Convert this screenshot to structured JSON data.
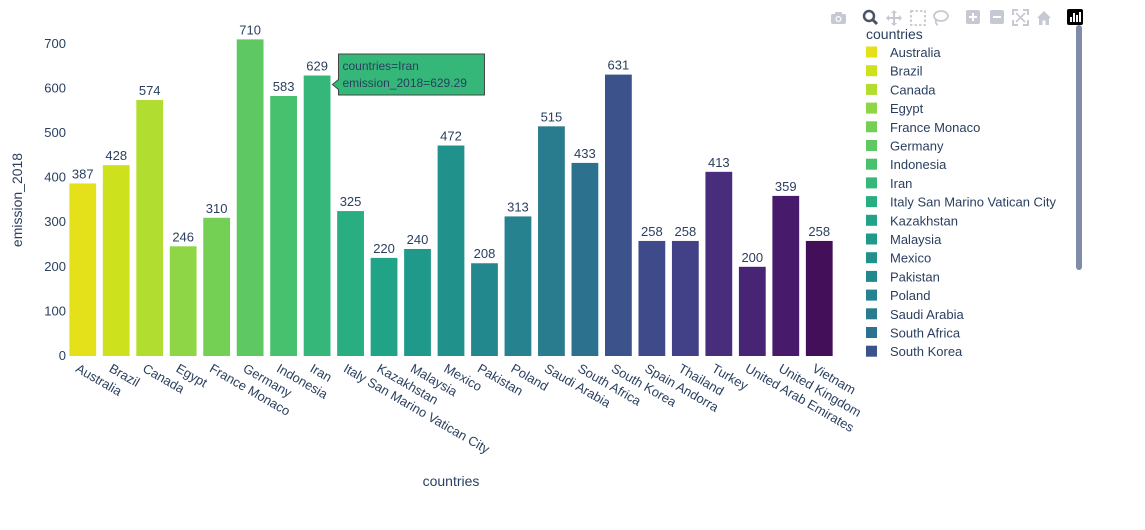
{
  "chart_data": {
    "type": "bar",
    "categories": [
      "Australia",
      "Brazil",
      "Canada",
      "Egypt",
      "France  Monaco",
      "Germany",
      "Indonesia",
      "Iran",
      "Italy  San Marino  Vatican City",
      "Kazakhstan",
      "Malaysia",
      "Mexico",
      "Pakistan",
      "Poland",
      "Saudi Arabia",
      "South Africa",
      "South Korea",
      "Spain  Andorra",
      "Thailand",
      "Turkey",
      "United Arab Emirates",
      "United Kingdom",
      "Vietnam"
    ],
    "values": [
      387,
      428,
      574,
      246,
      310,
      710,
      583,
      629,
      325,
      220,
      240,
      472,
      208,
      313,
      515,
      433,
      631,
      258,
      258,
      413,
      200,
      359,
      258
    ],
    "data_labels": [
      "387",
      "428",
      "574",
      "246",
      "310",
      "710",
      "583",
      "629",
      "325",
      "220",
      "240",
      "472",
      "208",
      "313",
      "515",
      "433",
      "631",
      "258",
      "258",
      "413",
      "200",
      "359",
      "258"
    ],
    "colors": [
      "#e4e11b",
      "#cde11d",
      "#b0dd2f",
      "#8ed645",
      "#74d055",
      "#5ec962",
      "#48c16e",
      "#35b779",
      "#28ae80",
      "#20a386",
      "#1f9a8a",
      "#21918c",
      "#23888e",
      "#26828e",
      "#297b8e",
      "#2c728e",
      "#3b528b",
      "#3e4a89",
      "#424086",
      "#472d7b",
      "#482475",
      "#481a6c",
      "#440f59"
    ],
    "xlabel": "countries",
    "ylabel": "emission_2018",
    "ylim": [
      0,
      740
    ],
    "yticks": [
      0,
      100,
      200,
      300,
      400,
      500,
      600,
      700
    ],
    "grid": false,
    "legend": {
      "title": "countries",
      "placement": "top-right",
      "entries": [
        "Australia",
        "Brazil",
        "Canada",
        "Egypt",
        "France  Monaco",
        "Germany",
        "Indonesia",
        "Iran",
        "Italy  San Marino  Vatican City",
        "Kazakhstan",
        "Malaysia",
        "Mexico",
        "Pakistan",
        "Poland",
        "Saudi Arabia",
        "South Africa",
        "South Korea"
      ]
    },
    "tooltip": {
      "category_index": 7,
      "line1": "countries=Iran",
      "line2": "emission_2018=629.29",
      "color": "#35b779"
    }
  },
  "modebar": {
    "icons": [
      "camera-icon",
      "zoom-icon",
      "pan-icon",
      "box-select-icon",
      "lasso-select-icon",
      "zoom-in-icon",
      "zoom-out-icon",
      "autoscale-icon",
      "reset-axes-icon",
      "plotly-logo-icon"
    ]
  }
}
